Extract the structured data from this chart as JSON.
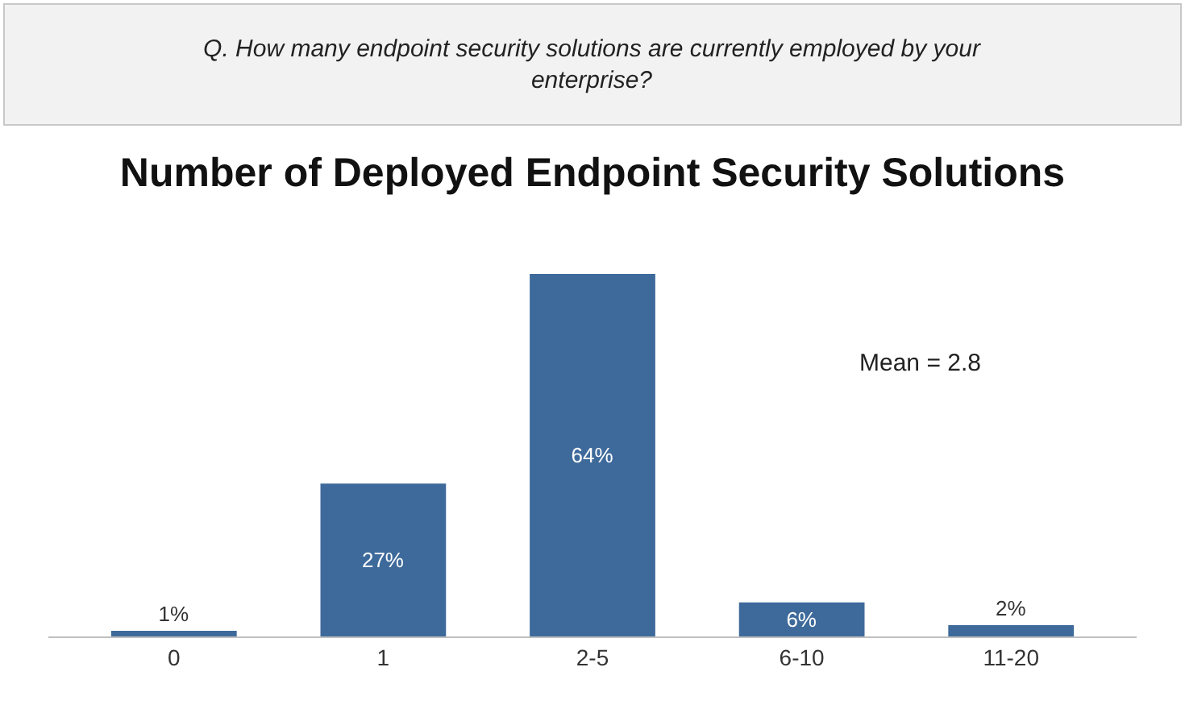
{
  "chart_data": {
    "type": "bar",
    "title": "Number of Deployed Endpoint Security Solutions",
    "categories": [
      "0",
      "1",
      "2-5",
      "6-10",
      "11-20"
    ],
    "values": [
      1,
      27,
      64,
      6,
      2
    ],
    "color": "#3e6a9b",
    "value_labels": [
      "1%",
      "27%",
      "64%",
      "6%",
      "2%"
    ],
    "tick_labels": "x",
    "annotations": [
      "Q. How many endpoint security solutions are currently employed by your enterprise?",
      "Mean = 2.8"
    ]
  }
}
